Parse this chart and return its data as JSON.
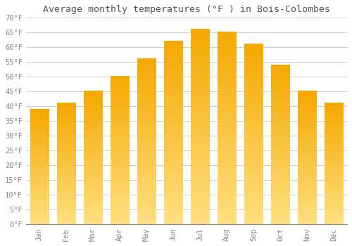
{
  "title": "Average monthly temperatures (°F ) in Bois-Colombes",
  "months": [
    "Jan",
    "Feb",
    "Mar",
    "Apr",
    "May",
    "Jun",
    "Jul",
    "Aug",
    "Sep",
    "Oct",
    "Nov",
    "Dec"
  ],
  "values": [
    39,
    41,
    45,
    50,
    56,
    62,
    66,
    65,
    61,
    54,
    45,
    41
  ],
  "bar_color_top": "#F5A800",
  "bar_color_bottom": "#FFE080",
  "ylim": [
    0,
    70
  ],
  "yticks": [
    0,
    5,
    10,
    15,
    20,
    25,
    30,
    35,
    40,
    45,
    50,
    55,
    60,
    65,
    70
  ],
  "background_color": "#FFFFFF",
  "grid_color": "#CCCCCC",
  "title_fontsize": 9.5,
  "tick_fontsize": 7.5,
  "font_family": "monospace"
}
